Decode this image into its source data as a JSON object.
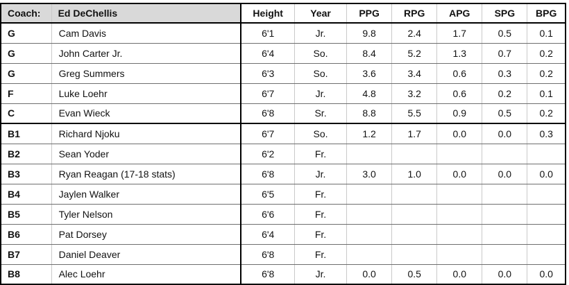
{
  "sheet": {
    "header": {
      "coach_label": "Coach:",
      "coach_name": "Ed DeChellis",
      "stat_columns": [
        "Height",
        "Year",
        "PPG",
        "RPG",
        "APG",
        "SPG",
        "BPG"
      ]
    },
    "players": [
      {
        "pos": "G",
        "name": "Cam Davis",
        "height": "6'1",
        "year": "Jr.",
        "ppg": "9.8",
        "rpg": "2.4",
        "apg": "1.7",
        "spg": "0.5",
        "bpg": "0.1",
        "group": "starters"
      },
      {
        "pos": "G",
        "name": "John Carter Jr.",
        "height": "6'4",
        "year": "So.",
        "ppg": "8.4",
        "rpg": "5.2",
        "apg": "1.3",
        "spg": "0.7",
        "bpg": "0.2",
        "group": "starters"
      },
      {
        "pos": "G",
        "name": "Greg Summers",
        "height": "6'3",
        "year": "So.",
        "ppg": "3.6",
        "rpg": "3.4",
        "apg": "0.6",
        "spg": "0.3",
        "bpg": "0.2",
        "group": "starters"
      },
      {
        "pos": "F",
        "name": "Luke Loehr",
        "height": "6'7",
        "year": "Jr.",
        "ppg": "4.8",
        "rpg": "3.2",
        "apg": "0.6",
        "spg": "0.2",
        "bpg": "0.1",
        "group": "starters"
      },
      {
        "pos": "C",
        "name": "Evan Wieck",
        "height": "6'8",
        "year": "Sr.",
        "ppg": "8.8",
        "rpg": "5.5",
        "apg": "0.9",
        "spg": "0.5",
        "bpg": "0.2",
        "group": "starters"
      },
      {
        "pos": "B1",
        "name": "Richard Njoku",
        "height": "6'7",
        "year": "So.",
        "ppg": "1.2",
        "rpg": "1.7",
        "apg": "0.0",
        "spg": "0.0",
        "bpg": "0.3",
        "group": "bench"
      },
      {
        "pos": "B2",
        "name": "Sean Yoder",
        "height": "6'2",
        "year": "Fr.",
        "ppg": "",
        "rpg": "",
        "apg": "",
        "spg": "",
        "bpg": "",
        "group": "bench"
      },
      {
        "pos": "B3",
        "name": "Ryan Reagan (17-18 stats)",
        "height": "6'8",
        "year": "Jr.",
        "ppg": "3.0",
        "rpg": "1.0",
        "apg": "0.0",
        "spg": "0.0",
        "bpg": "0.0",
        "group": "bench"
      },
      {
        "pos": "B4",
        "name": "Jaylen Walker",
        "height": "6'5",
        "year": "Fr.",
        "ppg": "",
        "rpg": "",
        "apg": "",
        "spg": "",
        "bpg": "",
        "group": "bench"
      },
      {
        "pos": "B5",
        "name": "Tyler Nelson",
        "height": "6'6",
        "year": "Fr.",
        "ppg": "",
        "rpg": "",
        "apg": "",
        "spg": "",
        "bpg": "",
        "group": "bench"
      },
      {
        "pos": "B6",
        "name": "Pat Dorsey",
        "height": "6'4",
        "year": "Fr.",
        "ppg": "",
        "rpg": "",
        "apg": "",
        "spg": "",
        "bpg": "",
        "group": "bench"
      },
      {
        "pos": "B7",
        "name": "Daniel Deaver",
        "height": "6'8",
        "year": "Fr.",
        "ppg": "",
        "rpg": "",
        "apg": "",
        "spg": "",
        "bpg": "",
        "group": "bench"
      },
      {
        "pos": "B8",
        "name": "Alec Loehr",
        "height": "6'8",
        "year": "Jr.",
        "ppg": "0.0",
        "rpg": "0.5",
        "apg": "0.0",
        "spg": "0.0",
        "bpg": "0.0",
        "group": "bench"
      }
    ],
    "colors": {
      "header_fill": "#d9d9d9",
      "border_strong": "#000000",
      "gridline": "#c9c9c9",
      "row_line": "#6e6e6e"
    }
  }
}
